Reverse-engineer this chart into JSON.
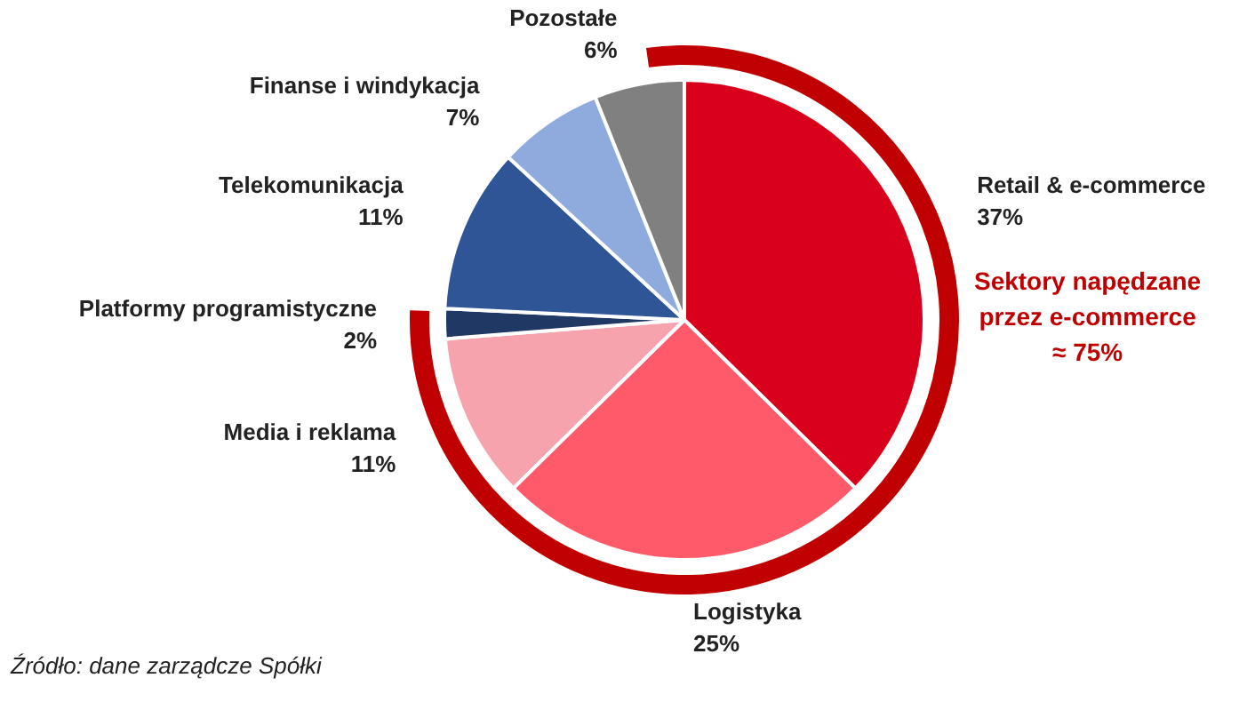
{
  "chart_data": {
    "type": "pie",
    "categories": [
      "Retail & e-commerce",
      "Logistyka",
      "Media i reklama",
      "Platformy programistyczne",
      "Telekomunikacja",
      "Finanse i windykacja",
      "Pozostałe"
    ],
    "values": [
      37,
      25,
      11,
      2,
      11,
      7,
      6
    ],
    "colors": [
      "#d9001b",
      "#ff5a6a",
      "#f6a3ad",
      "#1f3864",
      "#2f5597",
      "#8faadc",
      "#808080"
    ],
    "value_labels": [
      "37%",
      "25%",
      "11%",
      "2%",
      "11%",
      "7%",
      "6%"
    ],
    "annotations": [
      "Sektory napędzane\nprzez e-commerce\n≈ 75%",
      "Źródło: dane zarządcze Spółki"
    ],
    "legend": false
  }
}
